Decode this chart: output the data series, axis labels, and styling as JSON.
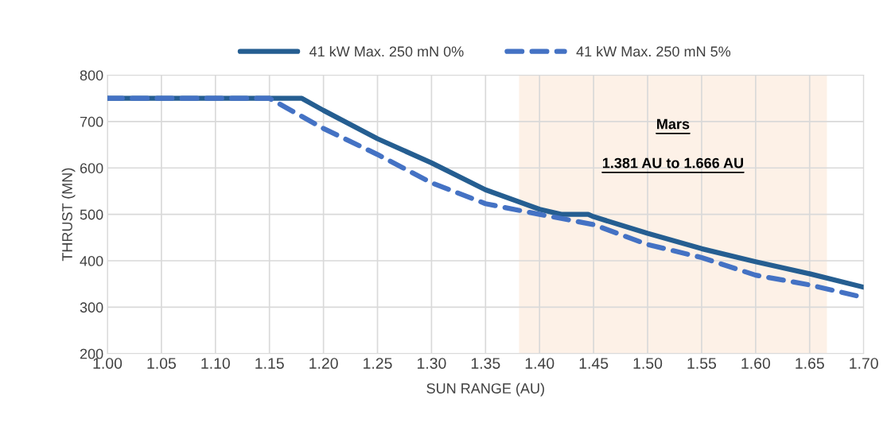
{
  "chart_data": {
    "type": "line",
    "xlabel": "SUN RANGE (AU)",
    "ylabel": "THRUST (MN)",
    "series": [
      {
        "name": "41 kW Max. 250 mN 0%",
        "color": "#255e91",
        "line_style": "solid",
        "x": [
          1.0,
          1.05,
          1.1,
          1.15,
          1.18,
          1.2,
          1.25,
          1.3,
          1.35,
          1.4,
          1.42,
          1.445,
          1.45,
          1.5,
          1.55,
          1.6,
          1.65,
          1.7
        ],
        "values": [
          750,
          750,
          750,
          750,
          750,
          724,
          663,
          611,
          553,
          511,
          500,
          500,
          495,
          459,
          426,
          398,
          372,
          343
        ]
      },
      {
        "name": "41 kW Max. 250 mN 5%",
        "color": "#4472c4",
        "line_style": "dashed",
        "x": [
          1.0,
          1.05,
          1.1,
          1.15,
          1.2,
          1.25,
          1.3,
          1.35,
          1.4,
          1.45,
          1.5,
          1.55,
          1.6,
          1.65,
          1.7
        ],
        "values": [
          750,
          750,
          750,
          750,
          685,
          629,
          568,
          523,
          500,
          478,
          435,
          407,
          369,
          348,
          321
        ]
      }
    ],
    "xlim": [
      1.0,
      1.7
    ],
    "ylim": [
      200,
      800
    ],
    "xticks": [
      {
        "value": 1.0,
        "label": "1.00"
      },
      {
        "value": 1.05,
        "label": "1.05"
      },
      {
        "value": 1.1,
        "label": "1.10"
      },
      {
        "value": 1.15,
        "label": "1.15"
      },
      {
        "value": 1.2,
        "label": "1.20"
      },
      {
        "value": 1.25,
        "label": "1.25"
      },
      {
        "value": 1.3,
        "label": "1.30"
      },
      {
        "value": 1.35,
        "label": "1.35"
      },
      {
        "value": 1.4,
        "label": "1.40"
      },
      {
        "value": 1.45,
        "label": "1.45"
      },
      {
        "value": 1.5,
        "label": "1.50"
      },
      {
        "value": 1.55,
        "label": "1.55"
      },
      {
        "value": 1.6,
        "label": "1.60"
      },
      {
        "value": 1.65,
        "label": "1.65"
      },
      {
        "value": 1.7,
        "label": "1.70"
      }
    ],
    "yticks": [
      200,
      300,
      400,
      500,
      600,
      700,
      800
    ],
    "bands": [
      {
        "axis": "x",
        "from": 1.381,
        "to": 1.666,
        "color": "#fdf1e7"
      }
    ],
    "annotations": [
      "Mars",
      "1.381 AU to 1.666 AU"
    ],
    "grid": true,
    "legend": "top",
    "marker": "none"
  }
}
